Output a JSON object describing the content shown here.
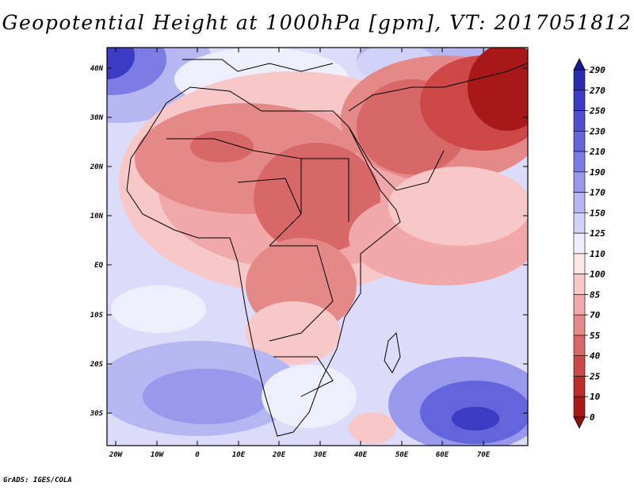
{
  "title": "Geopotential Height at 1000hPa [gpm], VT: 2017051812",
  "credit": "GrADS: IGES/COLA",
  "map": {
    "lat_labels": [
      "40N",
      "30N",
      "20N",
      "10N",
      "EQ",
      "10S",
      "20S",
      "30S"
    ],
    "lon_labels": [
      "20W",
      "10W",
      "0",
      "10E",
      "20E",
      "30E",
      "40E",
      "50E",
      "60E",
      "70E"
    ],
    "lat_range": [
      -37,
      45
    ],
    "lon_range": [
      -23,
      80
    ]
  },
  "colorbar": {
    "levels": [
      "290",
      "270",
      "250",
      "230",
      "210",
      "190",
      "170",
      "150",
      "125",
      "110",
      "100",
      "85",
      "70",
      "55",
      "40",
      "25",
      "10",
      "0"
    ],
    "colors": [
      "#1a1696",
      "#2b2bb0",
      "#3b3bc4",
      "#4f4fd0",
      "#6464dc",
      "#7c7ce4",
      "#9898ec",
      "#b6b6f2",
      "#d2d2f8",
      "#eeeefc",
      "#fde6e6",
      "#f8c8c8",
      "#f0a8a8",
      "#e48888",
      "#d86868",
      "#cc4848",
      "#bc2c2c",
      "#a81818",
      "#8c1010"
    ]
  }
}
